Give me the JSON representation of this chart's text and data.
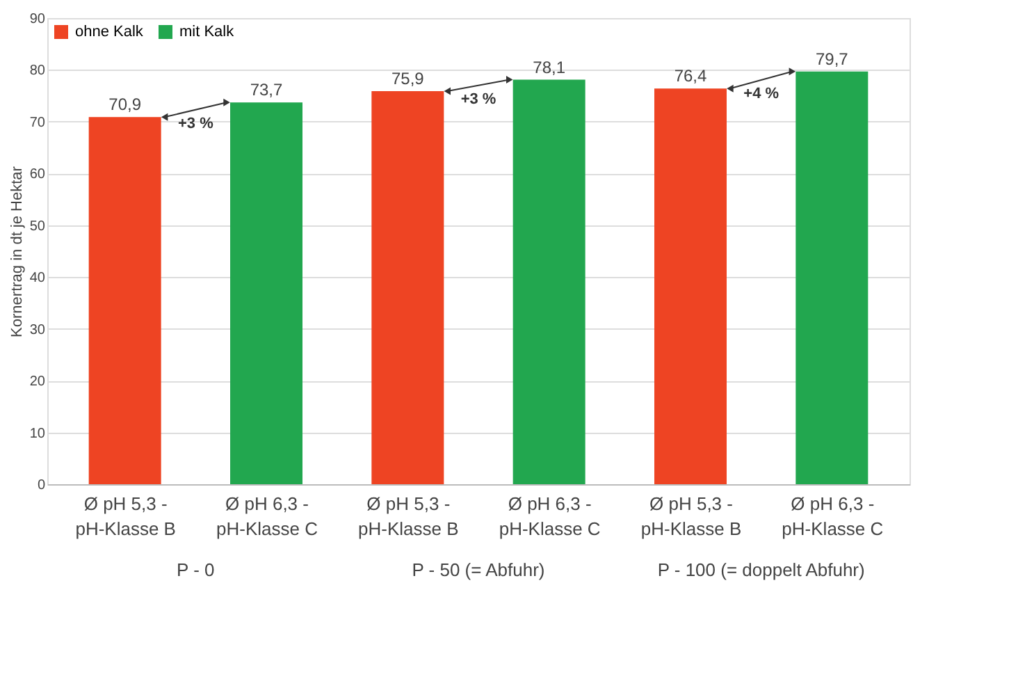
{
  "chart_data": {
    "type": "bar",
    "ylabel": "Kornertrag in dt je Hektar",
    "categories": [
      "Ø pH 5,3 - pH-Klasse B",
      "Ø pH 6,3 - pH-Klasse C",
      "Ø pH 5,3 - pH-Klasse B",
      "Ø pH 6,3 - pH-Klasse C",
      "Ø pH 5,3 - pH-Klasse B",
      "Ø pH 6,3 - pH-Klasse C"
    ],
    "series": [
      {
        "name": "ohne Kalk",
        "color": "#ee4423",
        "values": [
          70.9,
          null,
          75.9,
          null,
          76.4,
          null
        ],
        "value_labels": [
          "70,9",
          null,
          "75,9",
          null,
          "76,4",
          null
        ]
      },
      {
        "name": "mit Kalk",
        "color": "#22a74f",
        "values": [
          null,
          73.7,
          null,
          78.1,
          null,
          79.7
        ],
        "value_labels": [
          null,
          "73,7",
          null,
          "78,1",
          null,
          "79,7"
        ]
      }
    ],
    "annotations": [
      "P - 0",
      "P - 50 (= Abfuhr)",
      "P - 100 (= doppelt Abfuhr)",
      "+3 %",
      "+3 %",
      "+4 %"
    ],
    "ylim": [
      0,
      90
    ],
    "yticks": [
      0,
      10,
      20,
      30,
      40,
      50,
      60,
      70,
      80,
      90
    ],
    "grid": "y",
    "legend": "top left"
  }
}
